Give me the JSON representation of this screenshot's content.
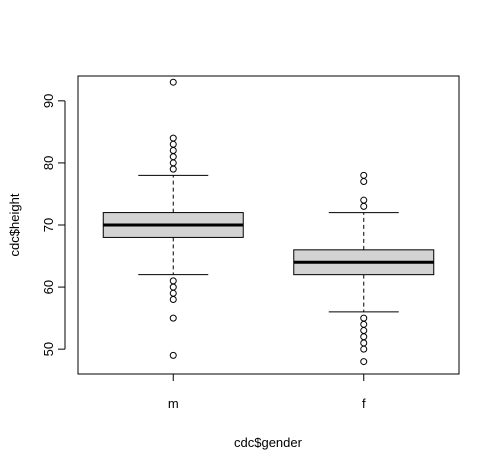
{
  "chart_data": {
    "type": "boxplot",
    "xlabel": "cdc$gender",
    "ylabel": "cdc$height",
    "ylim": [
      46,
      94
    ],
    "yticks": [
      50,
      60,
      70,
      80,
      90
    ],
    "categories": [
      "m",
      "f"
    ],
    "grid": false,
    "box_fill": "#d3d3d3",
    "boxes": [
      {
        "category": "m",
        "whisker_low": 62,
        "q1": 68,
        "median": 70,
        "q3": 72,
        "whisker_high": 78,
        "outliers": [
          49,
          55,
          58,
          59,
          60,
          61,
          79,
          80,
          81,
          82,
          83,
          84,
          93
        ]
      },
      {
        "category": "f",
        "whisker_low": 56,
        "q1": 62,
        "median": 64,
        "q3": 66,
        "whisker_high": 72,
        "outliers": [
          48,
          50,
          51,
          52,
          53,
          54,
          55,
          73,
          74,
          77,
          78
        ]
      }
    ]
  }
}
